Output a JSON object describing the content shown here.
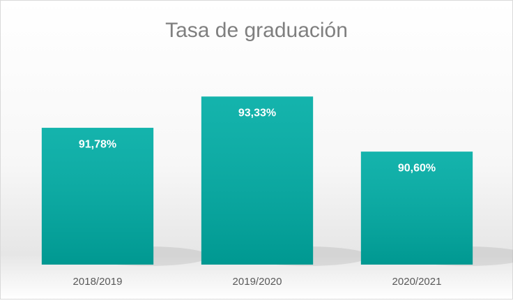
{
  "chart_data": {
    "type": "bar",
    "title": "Tasa de graduación",
    "categories": [
      "2018/2019",
      "2019/2020",
      "2020/2021"
    ],
    "values": [
      91.78,
      93.33,
      90.6
    ],
    "value_labels": [
      "91,78%",
      "93,33%",
      "90,60%"
    ],
    "color": "#00ada5",
    "ylim": [
      85,
      95
    ],
    "grid": false
  }
}
